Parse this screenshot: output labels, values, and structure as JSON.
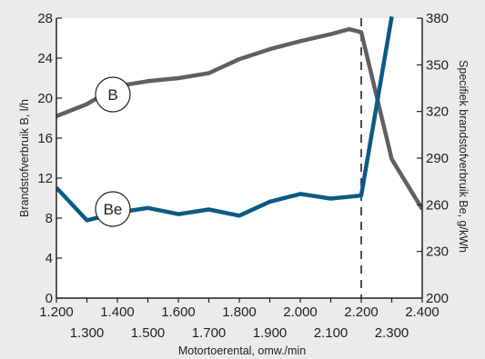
{
  "colors": {
    "background": "#ebebeb",
    "plot_background": "#ffffff",
    "series_B": "#606060",
    "series_Be": "#0b5a86",
    "axis": "#222222"
  },
  "chart_data": {
    "type": "line",
    "xlabel": "Motortoerental, omw./min",
    "ylabel_left": "Brandstofverbruik B, l/h",
    "ylabel_right": "Specifiek brandstofverbruik Be, g/kWh",
    "xlim": [
      1200,
      2400
    ],
    "ylim_left": [
      0,
      28
    ],
    "ylim_right": [
      200,
      380
    ],
    "x_ticks": [
      1200,
      1300,
      1400,
      1500,
      1600,
      1700,
      1800,
      1900,
      2000,
      2100,
      2200,
      2300,
      2400
    ],
    "x_tick_labels": [
      "1.200",
      "1.300",
      "1.400",
      "1.500",
      "1.600",
      "1.700",
      "1.800",
      "1.900",
      "2.000",
      "2.100",
      "2.200",
      "2.300",
      "2.400"
    ],
    "y_left_ticks": [
      0,
      4,
      8,
      12,
      16,
      20,
      24,
      28
    ],
    "y_left_tick_labels": [
      "0",
      "4",
      "8",
      "12",
      "16",
      "20",
      "24",
      "28"
    ],
    "y_right_ticks": [
      200,
      230,
      260,
      290,
      320,
      350,
      380
    ],
    "y_right_tick_labels": [
      "200",
      "230",
      "260",
      "290",
      "320",
      "350",
      "380"
    ],
    "reference_line_x": 2200,
    "grid": false,
    "series": [
      {
        "name": "B",
        "axis": "left",
        "x": [
          1200,
          1300,
          1400,
          1500,
          1600,
          1700,
          1800,
          1900,
          2000,
          2100,
          2160,
          2200,
          2300,
          2400
        ],
        "values": [
          18.2,
          19.4,
          21.2,
          21.7,
          22.0,
          22.5,
          23.9,
          24.9,
          25.7,
          26.4,
          26.9,
          26.6,
          13.9,
          8.9
        ]
      },
      {
        "name": "Be",
        "axis": "right",
        "x": [
          1200,
          1300,
          1400,
          1500,
          1600,
          1700,
          1800,
          1900,
          2000,
          2100,
          2200,
          2300
        ],
        "values": [
          271,
          250,
          255,
          258,
          254,
          257,
          253,
          262,
          267,
          264,
          266,
          381
        ]
      }
    ]
  }
}
